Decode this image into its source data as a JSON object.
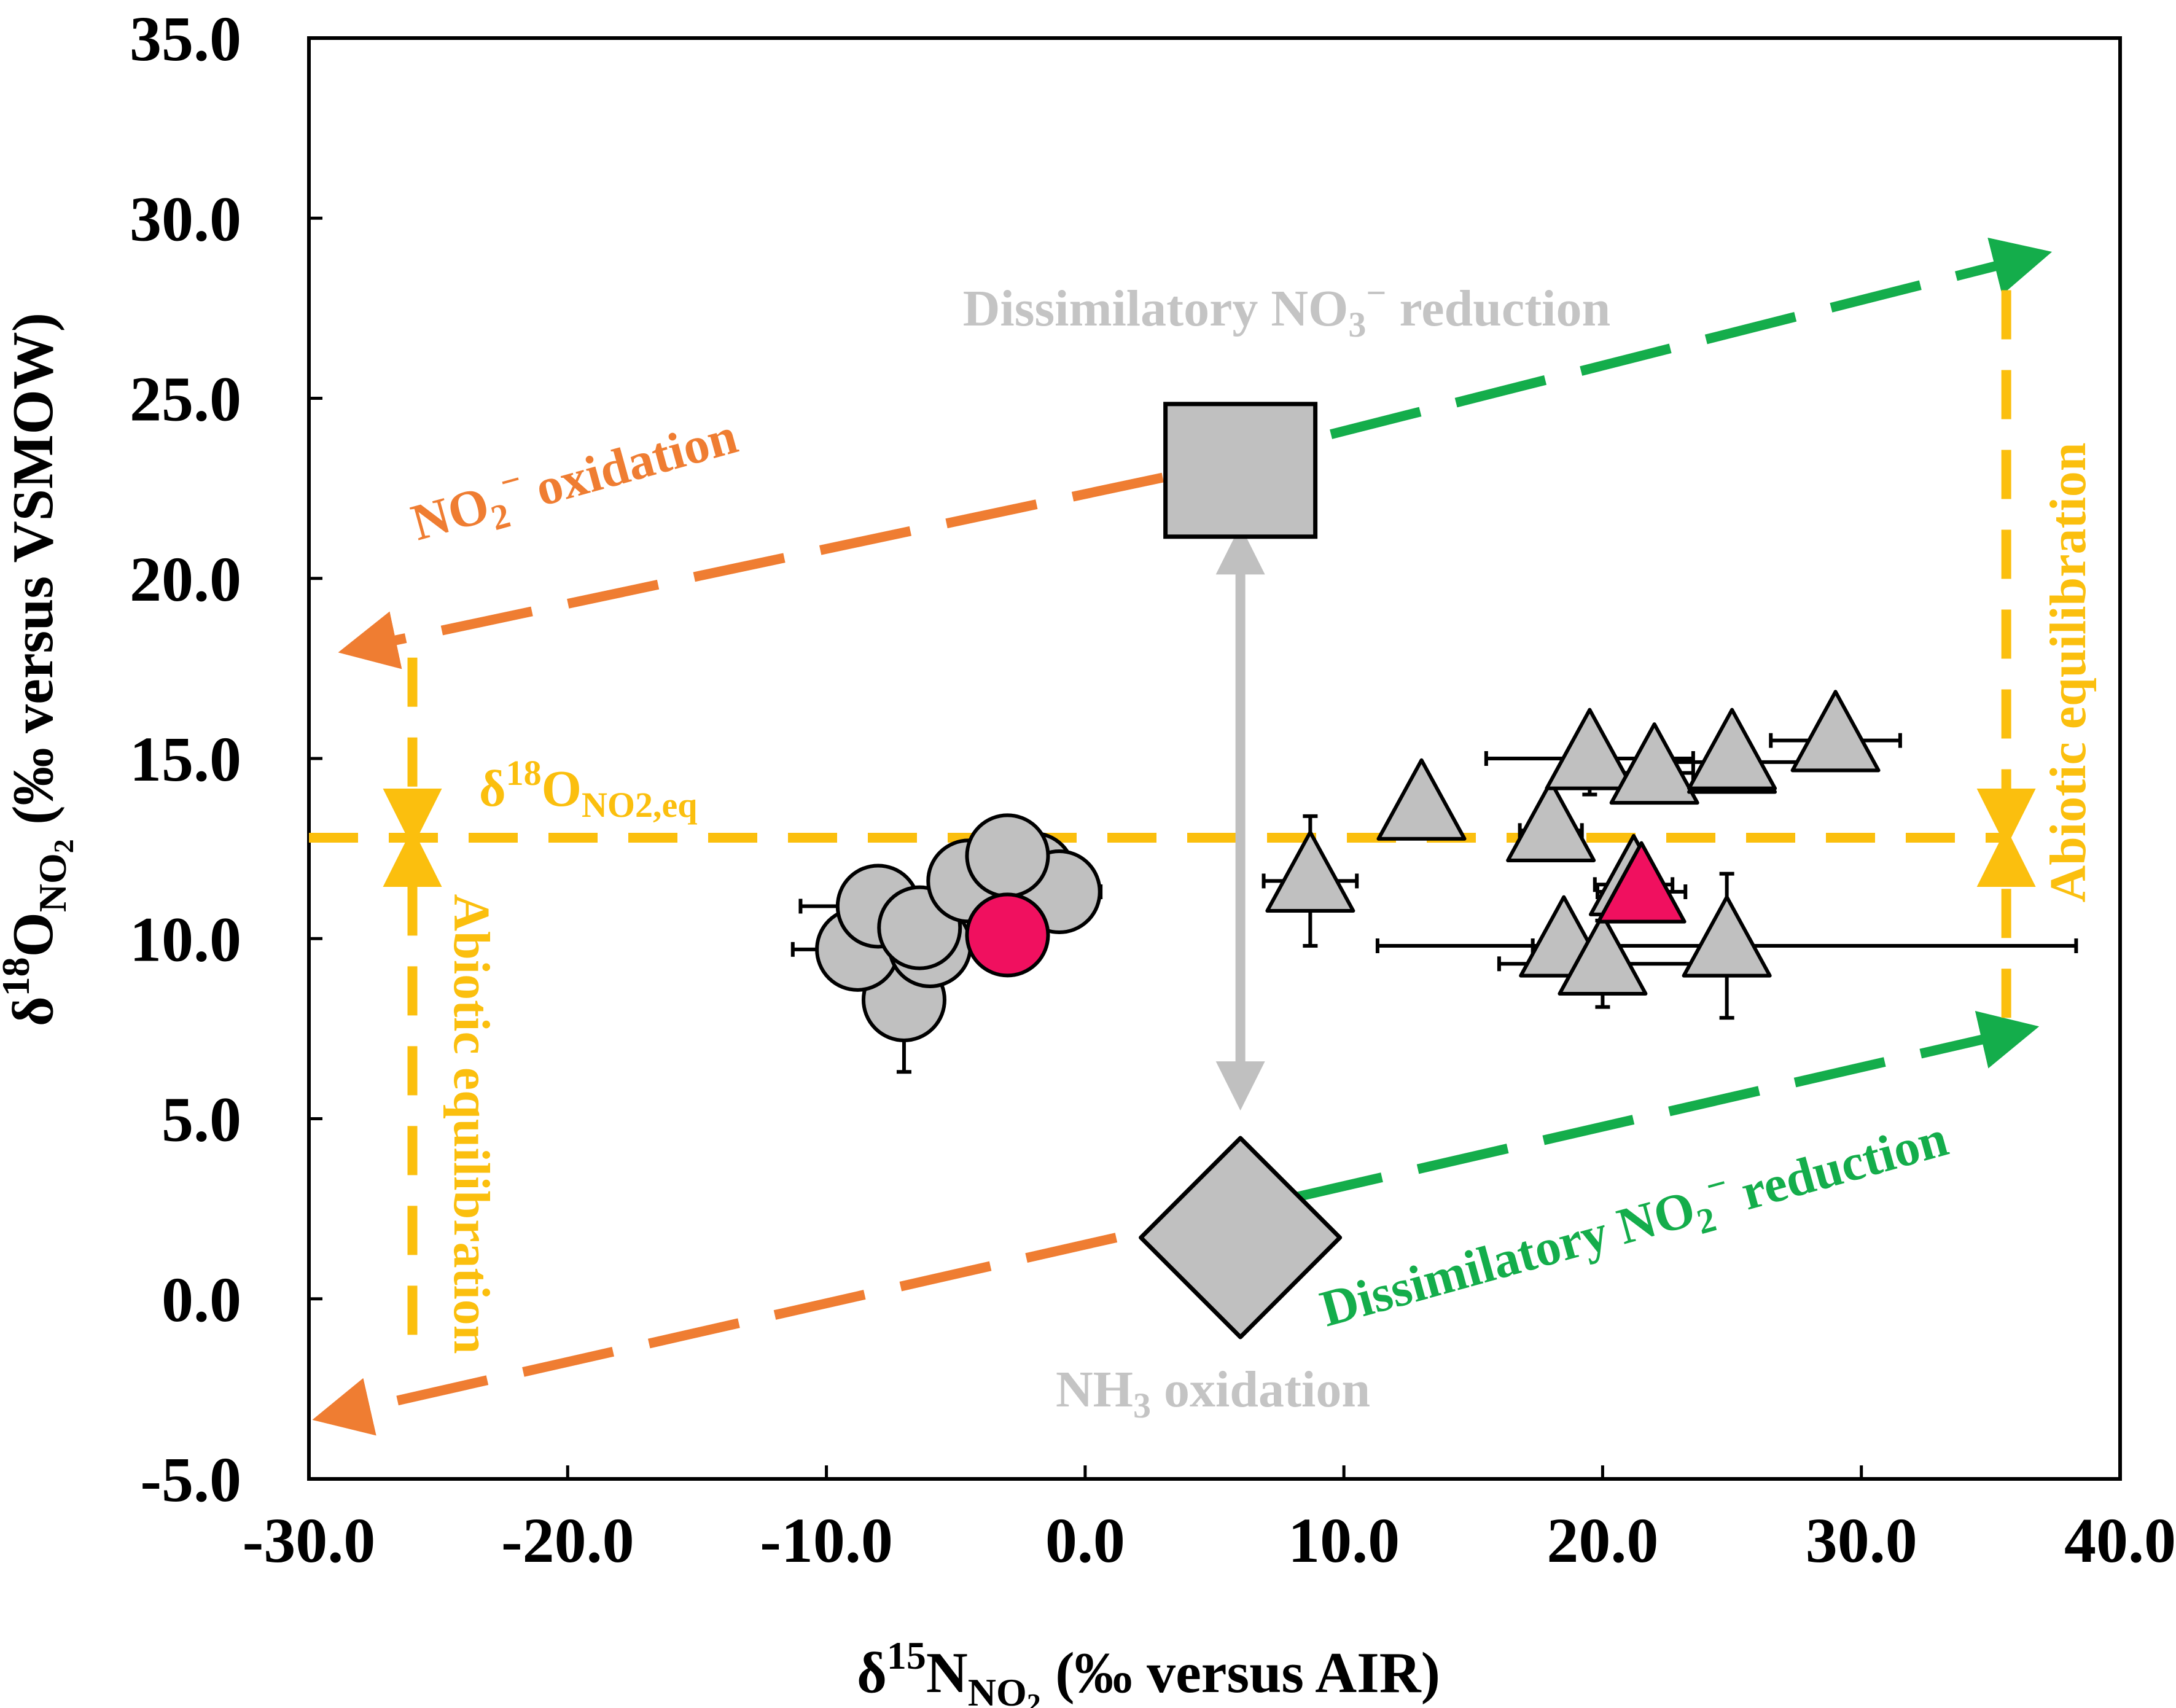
{
  "chart_data": {
    "type": "scatter",
    "title": "",
    "xlabel": {
      "prefix": "δ",
      "sup": "15",
      "main": "N",
      "sub": "NO",
      "sub2": "2",
      "suffix": " (‰ versus AIR)"
    },
    "ylabel": {
      "prefix": "δ",
      "sup": "18",
      "main": "O",
      "sub": "NO",
      "sub2": "2",
      "suffix": " (‰ versus VSMOW)"
    },
    "xlim": [
      -30,
      40
    ],
    "ylim": [
      -5,
      35
    ],
    "x_ticks": [
      -30,
      -20,
      -10,
      0,
      10,
      20,
      30,
      40
    ],
    "x_tick_labels": [
      "-30.0",
      "-20.0",
      "-10.0",
      "0.0",
      "10.0",
      "20.0",
      "30.0",
      "40.0"
    ],
    "y_ticks": [
      -5,
      0,
      5,
      10,
      15,
      20,
      25,
      30,
      35
    ],
    "y_tick_labels": [
      "-5.0",
      "0.0",
      "5.0",
      "10.0",
      "15.0",
      "20.0",
      "25.0",
      "30.0",
      "35.0"
    ],
    "colors": {
      "gray_fill": "#c0c0c0",
      "gray_text": "#c4c4c4",
      "pink": "#f0105f",
      "orange": "#ef7d32",
      "green": "#14ad4b",
      "yellow": "#fbbf0e",
      "outline": "#000000"
    },
    "series": [
      {
        "name": "circles",
        "marker": "circle",
        "points": [
          {
            "x": -7.0,
            "y": 8.3,
            "yerr": 2.0
          },
          {
            "x": -8.8,
            "y": 9.7,
            "xerr": 2.5
          },
          {
            "x": -8.0,
            "y": 10.9,
            "xerr": 3.0
          },
          {
            "x": -6.0,
            "y": 9.8
          },
          {
            "x": -6.4,
            "y": 10.3
          },
          {
            "x": -4.5,
            "y": 11.6
          },
          {
            "x": -2.0,
            "y": 11.8,
            "xerr": 1.5
          },
          {
            "x": -1.0,
            "y": 11.3,
            "xerr": 1.6
          },
          {
            "x": -3.0,
            "y": 12.3
          },
          {
            "x": -3.0,
            "y": 10.1,
            "highlight": true
          }
        ]
      },
      {
        "name": "triangles",
        "marker": "triangle",
        "points": [
          {
            "x": 8.7,
            "y": 11.6,
            "xerr": 1.8,
            "yerr": 1.8
          },
          {
            "x": 13.0,
            "y": 13.6
          },
          {
            "x": 18.0,
            "y": 13.0,
            "xerr": 1.2
          },
          {
            "x": 19.5,
            "y": 15.0,
            "xerr": 4.0,
            "yerr": 1.0
          },
          {
            "x": 22.0,
            "y": 14.6,
            "xerr": 1.5
          },
          {
            "x": 25.0,
            "y": 14.9,
            "xerr": 3.5
          },
          {
            "x": 25.0,
            "y": 15.0
          },
          {
            "x": 29.0,
            "y": 15.5,
            "xerr": 2.5
          },
          {
            "x": 18.5,
            "y": 9.8,
            "xerr": 1.2
          },
          {
            "x": 20.0,
            "y": 9.3,
            "xerr": 4.0,
            "yerr": 1.2
          },
          {
            "x": 24.8,
            "y": 9.8,
            "xerr": 13.5,
            "yerr": 2.0
          },
          {
            "x": 21.2,
            "y": 11.5,
            "xerr": 1.5
          },
          {
            "x": 21.5,
            "y": 11.3,
            "xerr": 1.7,
            "highlight": true
          }
        ]
      }
    ],
    "end_members": [
      {
        "name": "Dissimilatory NO3- reduction",
        "marker": "square",
        "x": 6.0,
        "y": 23.0
      },
      {
        "name": "NH3 oxidation",
        "marker": "diamond",
        "x": 6.0,
        "y": 1.7
      }
    ],
    "equilibrium_line": {
      "y": 12.8,
      "x_from": -30,
      "x_to": 35.5
    },
    "lines": [
      {
        "name": "NO2- oxidation (upper)",
        "color": "orange",
        "from": [
          3.0,
          22.8
        ],
        "to": [
          -28.5,
          18.0
        ],
        "arrow": true
      },
      {
        "name": "NO2- oxidation (lower)",
        "color": "orange",
        "from": [
          1.2,
          1.7
        ],
        "to": [
          -29.5,
          -3.3
        ],
        "arrow": true
      },
      {
        "name": "Dissimilatory NO2- reduction (upper)",
        "color": "green",
        "from": [
          9.5,
          24.0
        ],
        "to": [
          37.0,
          29.0
        ],
        "arrow": true
      },
      {
        "name": "Dissimilatory NO2- reduction (lower)",
        "color": "green",
        "from": [
          8.0,
          2.8
        ],
        "to": [
          36.5,
          7.5
        ],
        "arrow": true
      },
      {
        "name": "Abiotic equilibration (left)",
        "color": "yellow",
        "x": -26.0,
        "from_y": 17.8,
        "to_y": 12.8,
        "arrow": true
      },
      {
        "name": "Abiotic equilibration (left bottom)",
        "color": "yellow",
        "x": -26.0,
        "from_y": -1.0,
        "to_y": 12.8,
        "arrow": true
      },
      {
        "name": "Abiotic equilibration (right)",
        "color": "yellow",
        "x": 35.6,
        "from_y": 28.0,
        "to_y": 12.8,
        "arrow": true
      },
      {
        "name": "Abiotic equilibration (right bottom)",
        "color": "yellow",
        "x": 35.6,
        "from_y": 7.8,
        "to_y": 12.8,
        "arrow": true
      },
      {
        "name": "gray double arrow",
        "color": "gray",
        "x": 6.0,
        "from_y": 21.2,
        "to_y": 5.5,
        "arrow": "both"
      }
    ],
    "annotations": {
      "dissim_no3": {
        "prefix": "Dissimilatory NO",
        "sub": "3",
        "sup": "−",
        "suffix": " reduction"
      },
      "nh3": {
        "prefix": "NH",
        "sub": "3",
        "suffix": " oxidation"
      },
      "no2_ox": {
        "prefix": "NO",
        "sub": "2",
        "sup": "−",
        "suffix": " oxidation"
      },
      "dissim_no2": {
        "prefix": "Dissimilatory NO",
        "sub": "2",
        "sup": "−",
        "suffix": " reduction"
      },
      "eq": {
        "prefix": "δ",
        "sup": "18",
        "main": "O",
        "sub": "NO2,eq"
      },
      "abiotic_left": "Abiotic equilibration",
      "abiotic_right": "Abiotic equilibration"
    }
  }
}
